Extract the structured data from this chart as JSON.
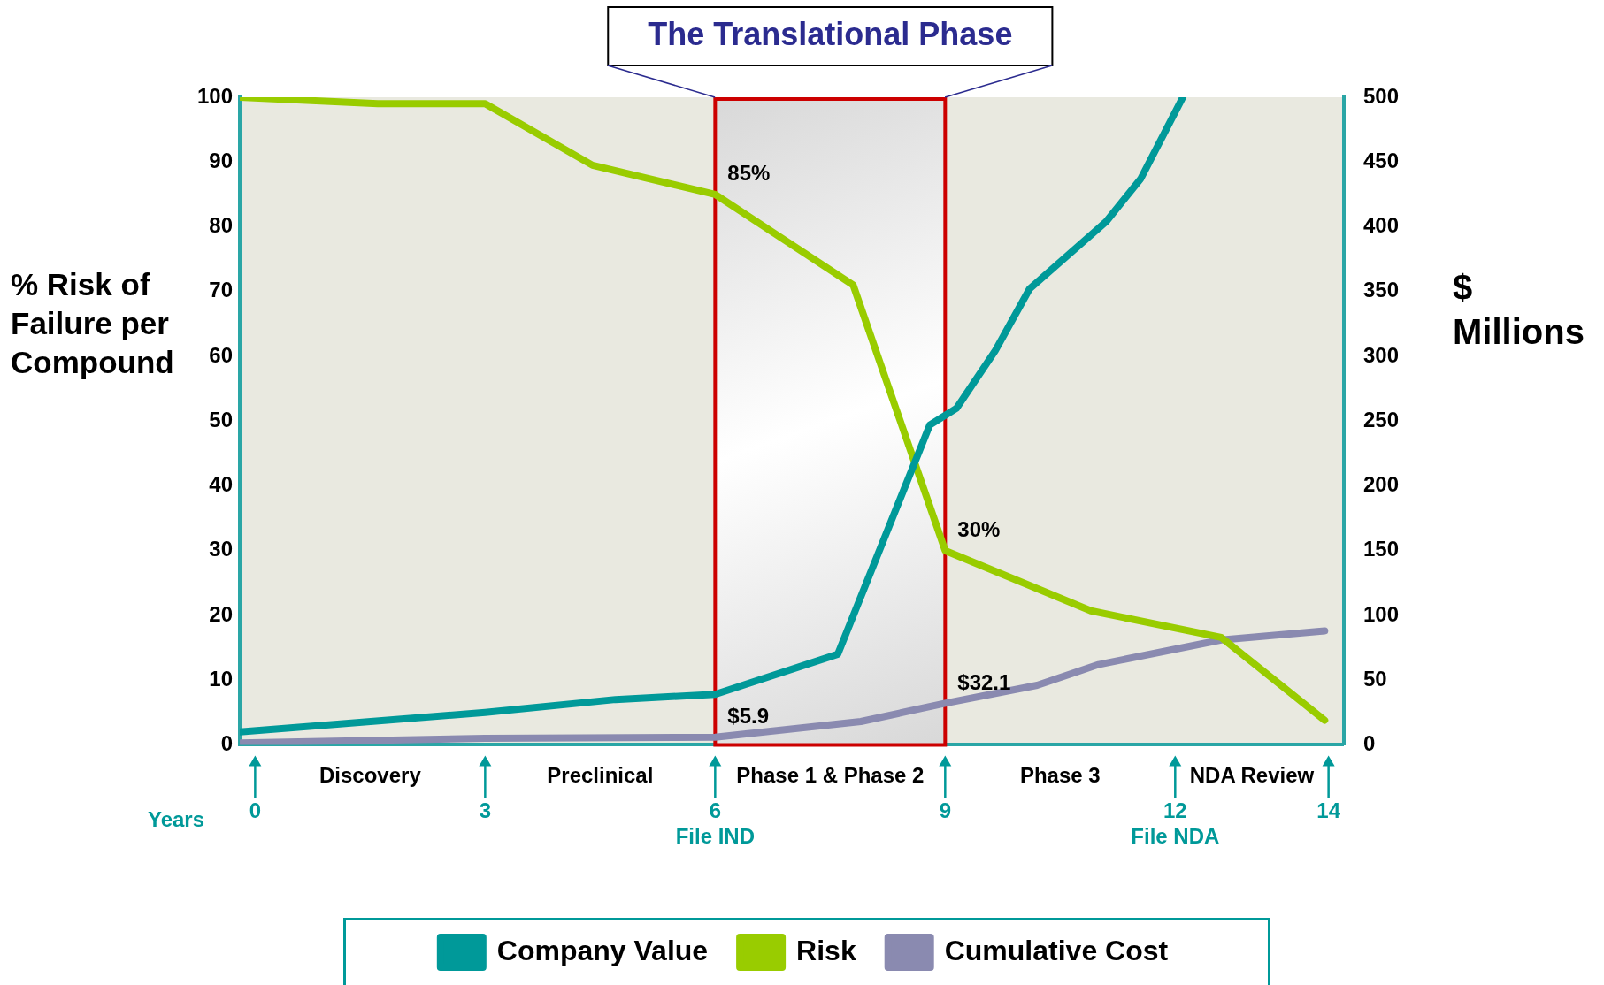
{
  "chart_data": {
    "type": "line",
    "ylabel": "% Risk of Failure per Compound",
    "y2label": "$ Millions",
    "xlabel": "Years",
    "xlim": [
      -0.2,
      14.2
    ],
    "xticks": [
      0,
      3,
      {
        "value": 6,
        "label": "6\nFile IND"
      },
      9,
      {
        "value": 12,
        "label": "12\nFile NDA"
      },
      14
    ],
    "ylim": [
      0,
      100
    ],
    "yticks": [
      0,
      10,
      20,
      30,
      40,
      50,
      60,
      70,
      80,
      90,
      100
    ],
    "y2lim": [
      0,
      500
    ],
    "y2ticks": [
      0,
      50,
      100,
      150,
      200,
      250,
      300,
      350,
      400,
      450,
      500
    ],
    "series": [
      {
        "name": "Company Value",
        "color": "#009999",
        "axis": "y2",
        "x": [
          -0.2,
          3,
          4.7,
          6,
          7.6,
          8.8,
          9.15,
          9.65,
          10.1,
          11.1,
          11.55,
          12.1
        ],
        "values": [
          10,
          25,
          35,
          39,
          70,
          247,
          260,
          304,
          352,
          404,
          437,
          500
        ]
      },
      {
        "name": "Risk",
        "color": "#99cc00",
        "x": [
          -0.2,
          1.6,
          3,
          4.4,
          6,
          7.8,
          9,
          10.9,
          12.6,
          13.95
        ],
        "values": [
          100,
          99,
          99,
          89.5,
          85,
          71,
          30,
          20.7,
          16.6,
          3.8
        ],
        "value_labels": [
          null,
          null,
          null,
          null,
          "85%",
          null,
          "30%",
          null,
          null,
          null
        ]
      },
      {
        "name": "Cumulative Cost",
        "color": "#8a8ab0",
        "axis": "y2",
        "x": [
          -0.2,
          3,
          6,
          7.9,
          9,
          10.2,
          11,
          12.6,
          13.95
        ],
        "values": [
          1.5,
          5,
          5.9,
          18,
          32.1,
          46,
          62,
          81,
          88
        ],
        "value_labels": [
          null,
          null,
          "$5.9",
          null,
          "$32.1",
          null,
          null,
          null,
          null
        ]
      }
    ],
    "bands": [
      {
        "axis": "x",
        "from": 6,
        "to": 9,
        "label": "The Translational Phase",
        "color": "#cc0000"
      }
    ],
    "annotations": [
      "Discovery",
      "Preclinical",
      "Phase 1 & Phase 2",
      "Phase 3",
      "NDA Review"
    ],
    "grid": false,
    "legend": "bottom",
    "marker": "none",
    "line_style": "solid"
  }
}
